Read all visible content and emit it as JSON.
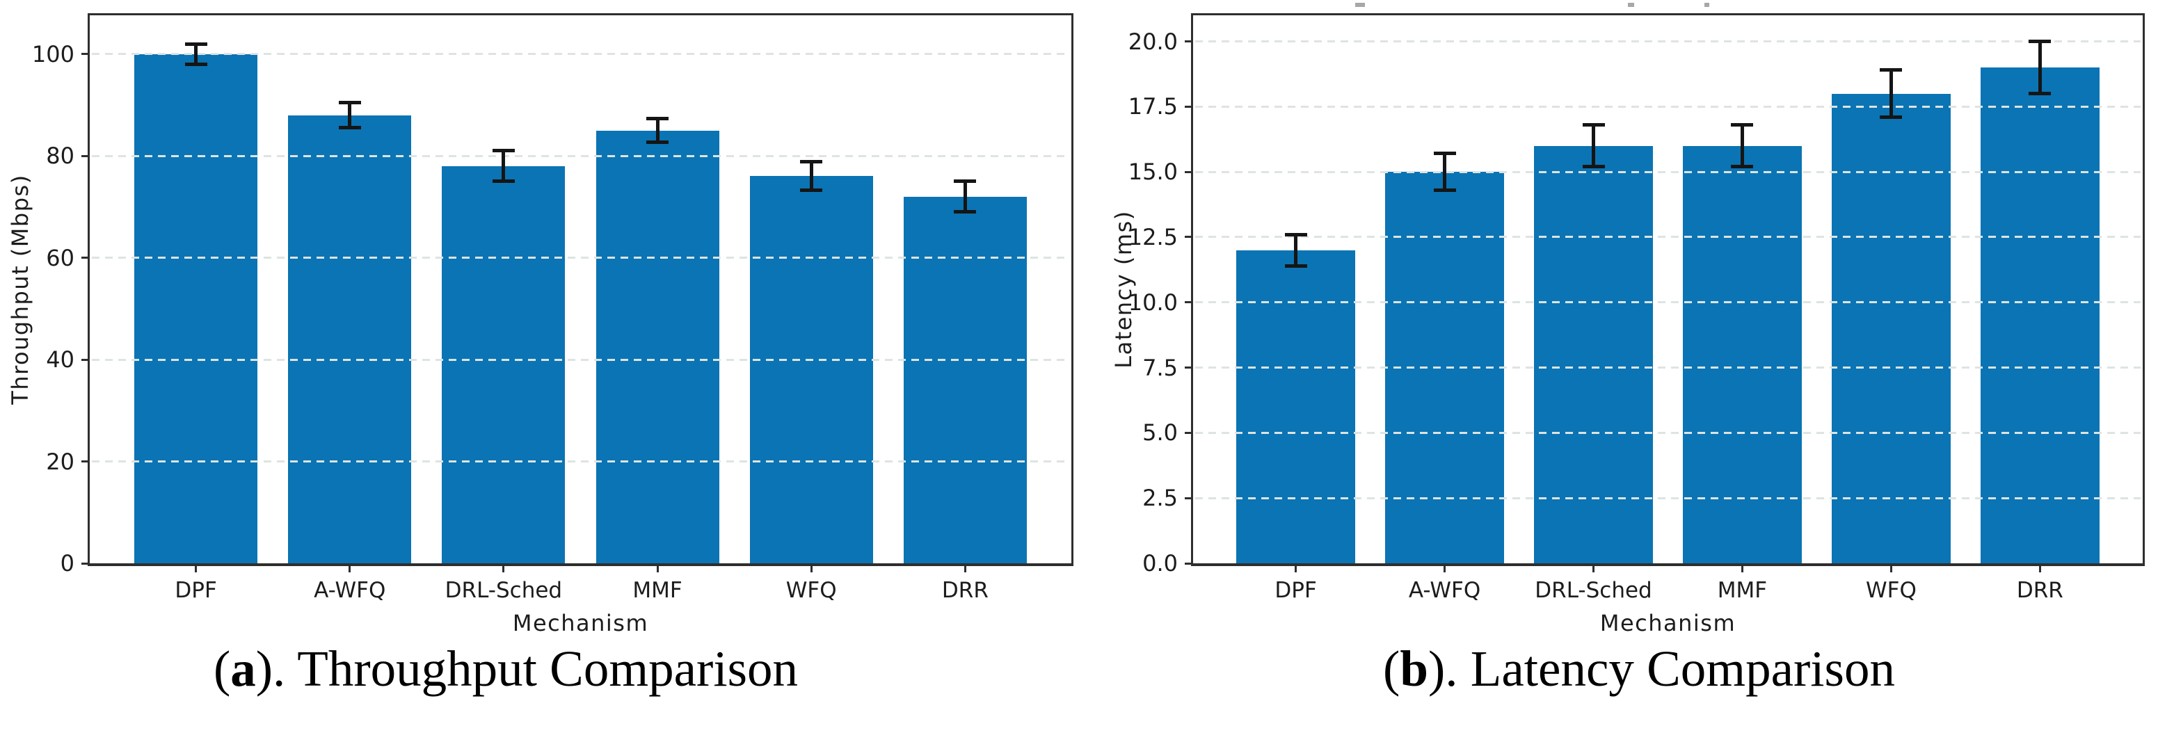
{
  "page": {
    "background": "#ffffff"
  },
  "chart_data": [
    {
      "type": "bar",
      "panel": "a",
      "caption": {
        "open": "(",
        "letter": "a",
        "close": "). ",
        "text": "Throughput Comparison"
      },
      "title": "Throughput Comparison",
      "xlabel": "Mechanism",
      "ylabel": "Throughput (Mbps)",
      "categories": [
        "DPF",
        "A-WFQ",
        "DRL-Sched",
        "MMF",
        "WFQ",
        "DRR"
      ],
      "values": [
        100,
        88,
        78,
        85,
        76,
        72
      ],
      "errors": [
        2,
        2.5,
        3,
        2.3,
        2.8,
        3
      ],
      "yticks": [
        0,
        20,
        40,
        60,
        80,
        100
      ],
      "ytick_labels": [
        "0",
        "20",
        "40",
        "60",
        "80",
        "100"
      ],
      "ylim": [
        0,
        107.6
      ],
      "grid": true,
      "grid_style": "dashed",
      "legend": "none",
      "bar_color": "#0b74b4",
      "error_color": "#151515",
      "axis_color": "#2e2e2e",
      "grid_color": "#dde4e2",
      "text_color": "#1c1c1c"
    },
    {
      "type": "bar",
      "panel": "b",
      "caption": {
        "open": "(",
        "letter": "b",
        "close": "). ",
        "text": "Latency Comparison"
      },
      "title": "Latency Comparison",
      "xlabel": "Mechanism",
      "ylabel": "Latency (ms)",
      "categories": [
        "DPF",
        "A-WFQ",
        "DRL-Sched",
        "MMF",
        "WFQ",
        "DRR"
      ],
      "values": [
        12,
        15,
        16,
        16,
        18,
        19
      ],
      "errors": [
        0.6,
        0.7,
        0.8,
        0.8,
        0.9,
        1.0
      ],
      "yticks": [
        0,
        2.5,
        5,
        7.5,
        10,
        12.5,
        15,
        17.5,
        20
      ],
      "ytick_labels": [
        "0.0",
        "2.5",
        "5.0",
        "7.5",
        "10.0",
        "12.5",
        "15.0",
        "17.5",
        "20.0"
      ],
      "ylim": [
        0,
        21.0
      ],
      "grid": true,
      "grid_style": "dashed",
      "legend": "none",
      "bar_color": "#0b74b4",
      "error_color": "#151515",
      "axis_color": "#2e2e2e",
      "grid_color": "#dde4e2",
      "text_color": "#1c1c1c"
    }
  ]
}
